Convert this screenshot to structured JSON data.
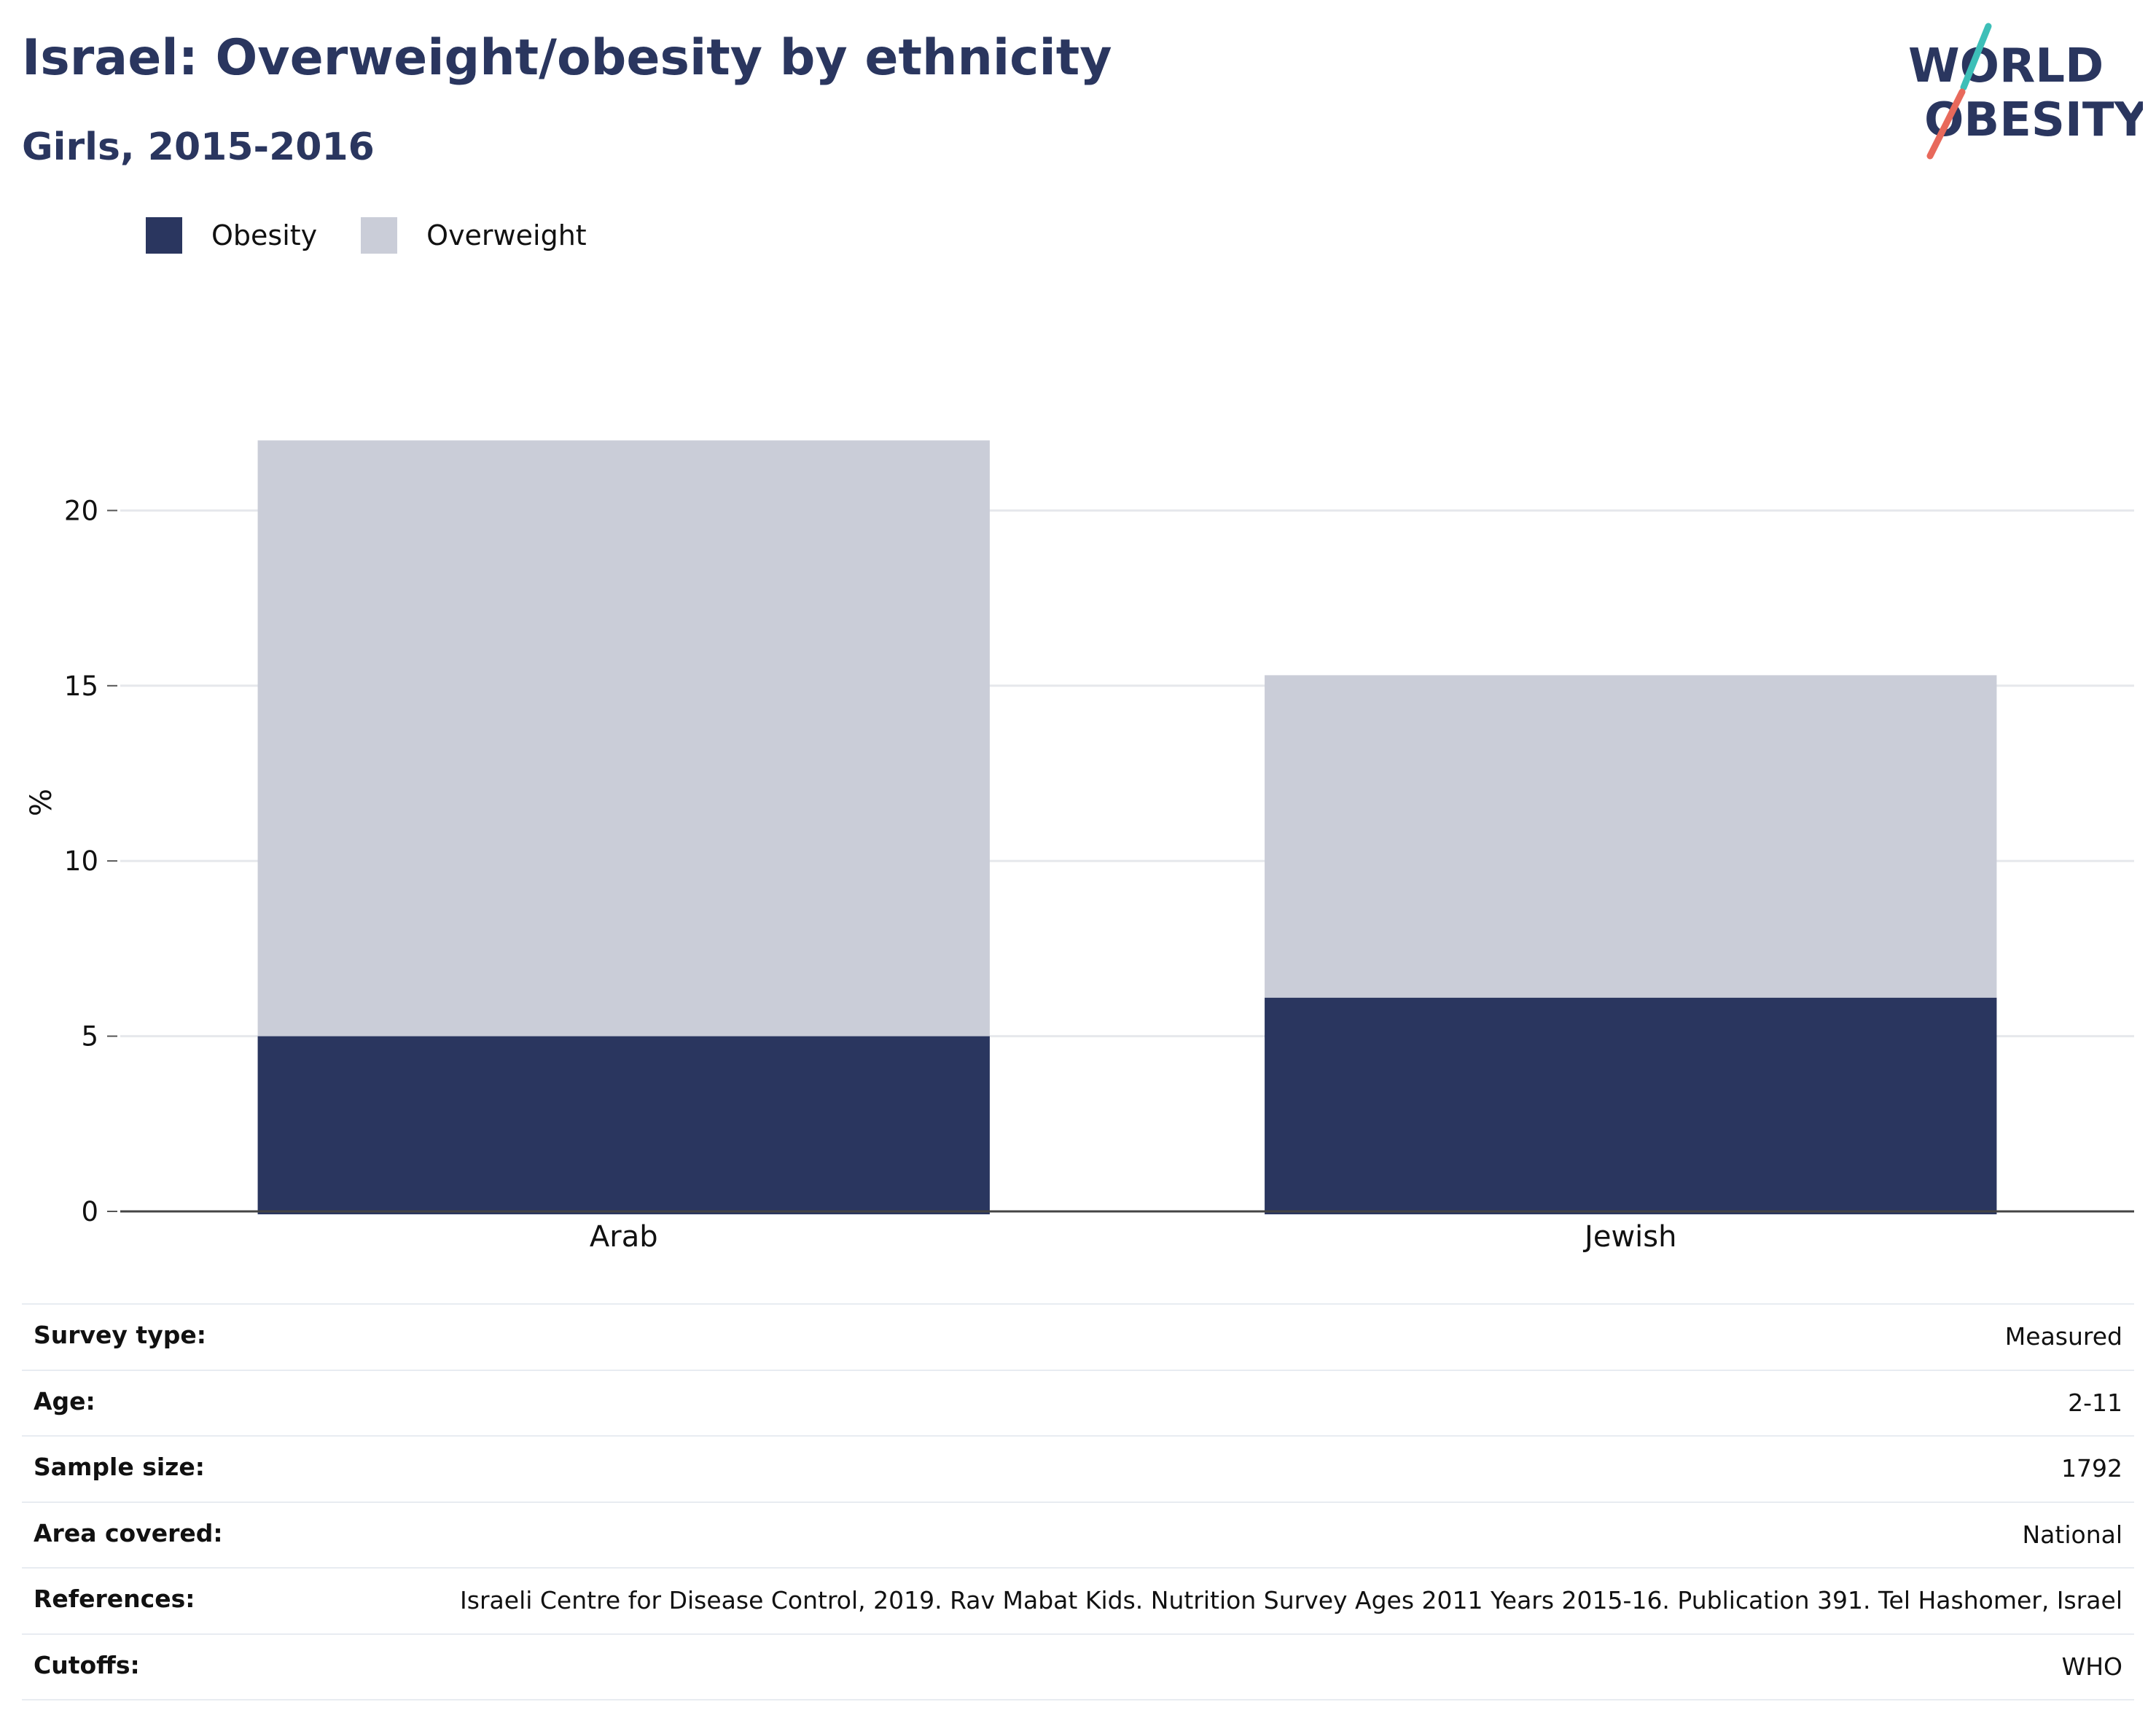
{
  "header": {
    "title": "Israel: Overweight/obesity by ethnicity",
    "subtitle": "Girls, 2015-2016"
  },
  "logo": {
    "line1": "WORLD",
    "line2": "OBESITY",
    "accent_colors": [
      "#3dbfb8",
      "#e8695b"
    ]
  },
  "legend": {
    "items": [
      {
        "label": "Obesity",
        "color": "#2a365f"
      },
      {
        "label": "Overweight",
        "color": "#cacdd8"
      }
    ]
  },
  "chart_data": {
    "type": "bar",
    "stacked": true,
    "categories": [
      "Arab",
      "Jewish"
    ],
    "series": [
      {
        "name": "Obesity",
        "values": [
          5.0,
          6.1
        ],
        "color": "#2a365f"
      },
      {
        "name": "Overweight",
        "values": [
          17.0,
          9.2
        ],
        "color": "#cacdd8"
      }
    ],
    "ylabel": "%",
    "xlabel": "",
    "ylim": [
      0,
      25
    ],
    "yticks": [
      0,
      5,
      10,
      15,
      20
    ],
    "grid": true,
    "legend_position": "top-left"
  },
  "info": {
    "rows": [
      {
        "key": "Survey type:",
        "value": "Measured"
      },
      {
        "key": "Age:",
        "value": "2-11"
      },
      {
        "key": "Sample size:",
        "value": "1792"
      },
      {
        "key": "Area covered:",
        "value": "National"
      },
      {
        "key": "References:",
        "value": "Israeli Centre for Disease Control, 2019. Rav Mabat Kids. Nutrition Survey Ages 2011 Years 2015-16. Publication 391. Tel Hashomer, Israel"
      },
      {
        "key": "Cutoffs:",
        "value": "WHO"
      }
    ]
  }
}
